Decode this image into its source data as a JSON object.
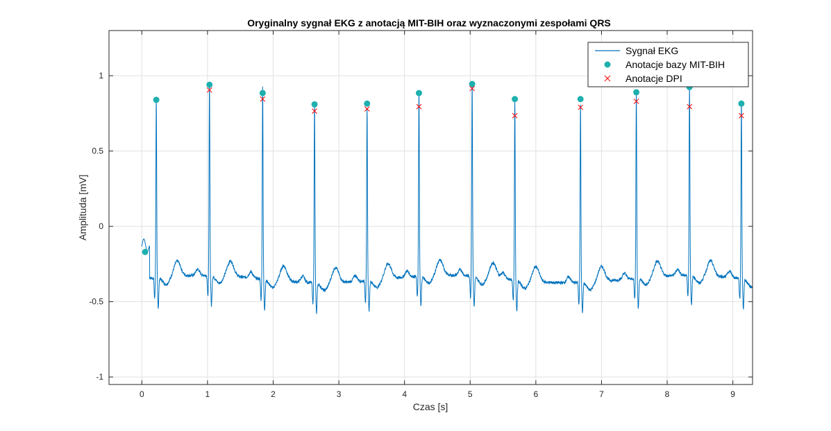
{
  "chart_data": {
    "type": "line",
    "title": "Oryginalny sygnał EKG z anotacją MIT-BIH oraz wyznaczonymi zespołami QRS",
    "xlabel": "Czas [s]",
    "ylabel": "Amplituda [mV]",
    "xlim": [
      -0.5,
      9.3
    ],
    "ylim": [
      -1.05,
      1.3
    ],
    "xticks": [
      0,
      1,
      2,
      3,
      4,
      5,
      6,
      7,
      8,
      9
    ],
    "yticks": [
      -1,
      -0.5,
      0,
      0.5,
      1
    ],
    "ytick_labels": [
      "-1",
      "-0.5",
      "0",
      "0.5",
      "1"
    ],
    "grid": true,
    "legend_position": "top-right",
    "series": [
      {
        "name": "Sygnał EKG",
        "kind": "line",
        "color": "#0072BD",
        "baseline": -0.35,
        "r_peaks": [
          {
            "t": 0.22,
            "amp": 0.84
          },
          {
            "t": 1.03,
            "amp": 0.93
          },
          {
            "t": 1.84,
            "amp": 0.95
          },
          {
            "t": 2.63,
            "amp": 0.85
          },
          {
            "t": 3.43,
            "amp": 0.81
          },
          {
            "t": 4.22,
            "amp": 0.88
          },
          {
            "t": 5.03,
            "amp": 0.94
          },
          {
            "t": 5.68,
            "amp": 0.85
          },
          {
            "t": 6.68,
            "amp": 0.84
          },
          {
            "t": 7.53,
            "amp": 0.89
          },
          {
            "t": 8.34,
            "amp": 0.93
          },
          {
            "t": 9.13,
            "amp": 0.84
          }
        ]
      },
      {
        "name": "Anotacje bazy MIT-BIH",
        "kind": "points",
        "marker": "circle",
        "color": "#1EAFAF",
        "x": [
          0.05,
          0.22,
          1.03,
          1.84,
          2.63,
          3.43,
          4.22,
          5.03,
          5.68,
          6.68,
          7.53,
          8.34,
          9.13
        ],
        "y": [
          -0.17,
          0.84,
          0.94,
          0.885,
          0.81,
          0.815,
          0.885,
          0.945,
          0.845,
          0.845,
          0.89,
          0.925,
          0.815
        ]
      },
      {
        "name": "Anotacje DPI",
        "kind": "points",
        "marker": "x",
        "color": "#FF0000",
        "x": [
          1.03,
          1.84,
          2.63,
          3.43,
          4.22,
          5.03,
          5.68,
          6.68,
          7.53,
          8.34,
          9.13
        ],
        "y": [
          0.905,
          0.845,
          0.765,
          0.78,
          0.795,
          0.915,
          0.735,
          0.79,
          0.83,
          0.795,
          0.735
        ]
      }
    ]
  }
}
